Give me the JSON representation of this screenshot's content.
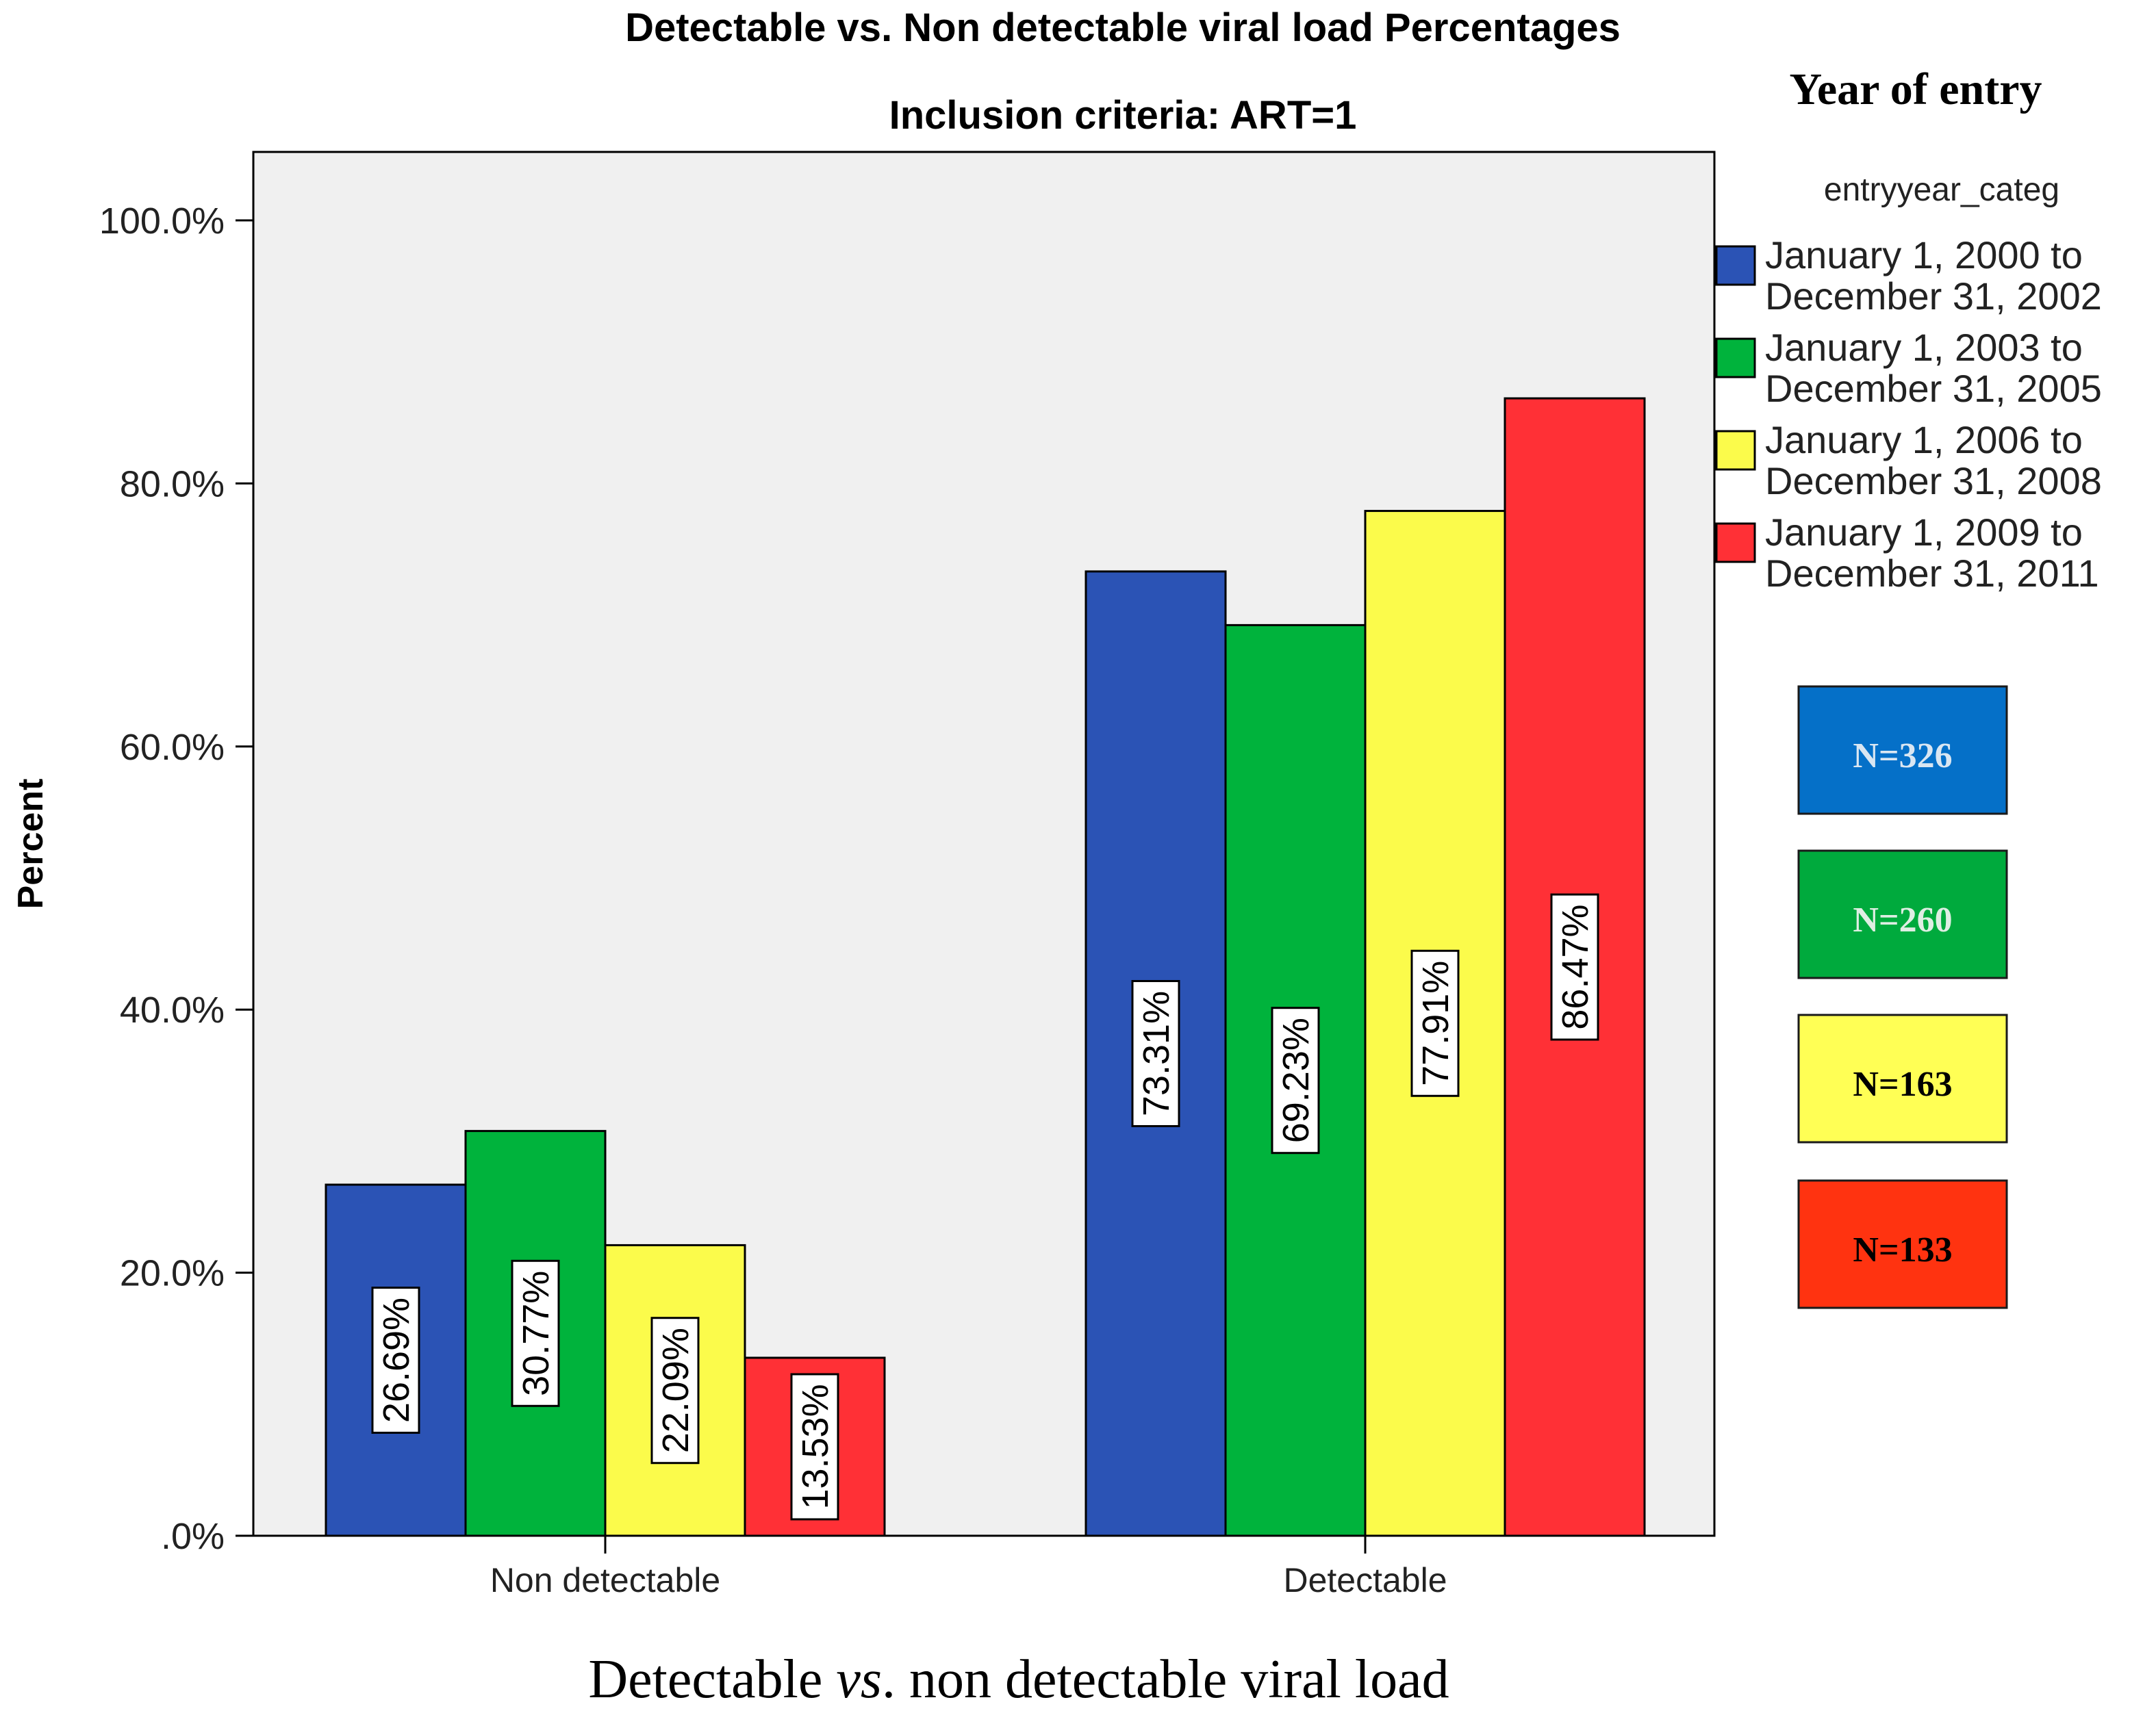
{
  "chart_data": {
    "type": "bar",
    "title": "Detectable vs. Non detectable viral load Percentages",
    "subtitle": "Inclusion criteria: ART=1",
    "xlabel": {
      "pre": "Detectable ",
      "italic": "vs",
      "post": ". non detectable viral load"
    },
    "ylabel": "Percent",
    "ylim": [
      0,
      105
    ],
    "yticks": [
      0,
      20,
      40,
      60,
      80,
      100
    ],
    "ytick_labels": [
      ".0%",
      "20.0%",
      "40.0%",
      "60.0%",
      "80.0%",
      "100.0%"
    ],
    "categories": [
      "Non detectable",
      "Detectable"
    ],
    "series": [
      {
        "name": "January 1, 2000 to December 31, 2002",
        "line1": "January 1, 2000 to",
        "line2": "December 31, 2002",
        "color": "#2b53b5",
        "values": [
          26.69,
          73.31
        ],
        "labels": [
          "26.69%",
          "73.31%"
        ]
      },
      {
        "name": "January 1, 2003 to December 31, 2005",
        "line1": "January 1, 2003 to",
        "line2": "December 31, 2005",
        "color": "#00b33c",
        "values": [
          30.77,
          69.23
        ],
        "labels": [
          "30.77%",
          "69.23%"
        ]
      },
      {
        "name": "January 1, 2006 to December 31, 2008",
        "line1": "January 1, 2006 to",
        "line2": "December 31, 2008",
        "color": "#fbfb4b",
        "values": [
          22.09,
          77.91
        ],
        "labels": [
          "22.09%",
          "77.91%"
        ]
      },
      {
        "name": "January 1, 2009 to December 31, 2011",
        "line1": "January 1, 2009 to",
        "line2": "December 31, 2011",
        "color": "#ff3036",
        "values": [
          13.53,
          86.47
        ],
        "labels": [
          "13.53%",
          "86.47%"
        ]
      }
    ],
    "legend_heading": "Year of entry",
    "legend_title": "entryyear_categ",
    "legend_position": "right",
    "n_boxes": [
      {
        "label": "N=326",
        "fill": "#0570c8",
        "text_color": "#d9e6f2"
      },
      {
        "label": "N=260",
        "fill": "#00aa3d",
        "text_color": "#dfeee3"
      },
      {
        "label": "N=163",
        "fill": "#ffff55",
        "text_color": "#000000"
      },
      {
        "label": "N=133",
        "fill": "#ff3310",
        "text_color": "#000000"
      }
    ],
    "plot_background": "#f0f0f0"
  }
}
